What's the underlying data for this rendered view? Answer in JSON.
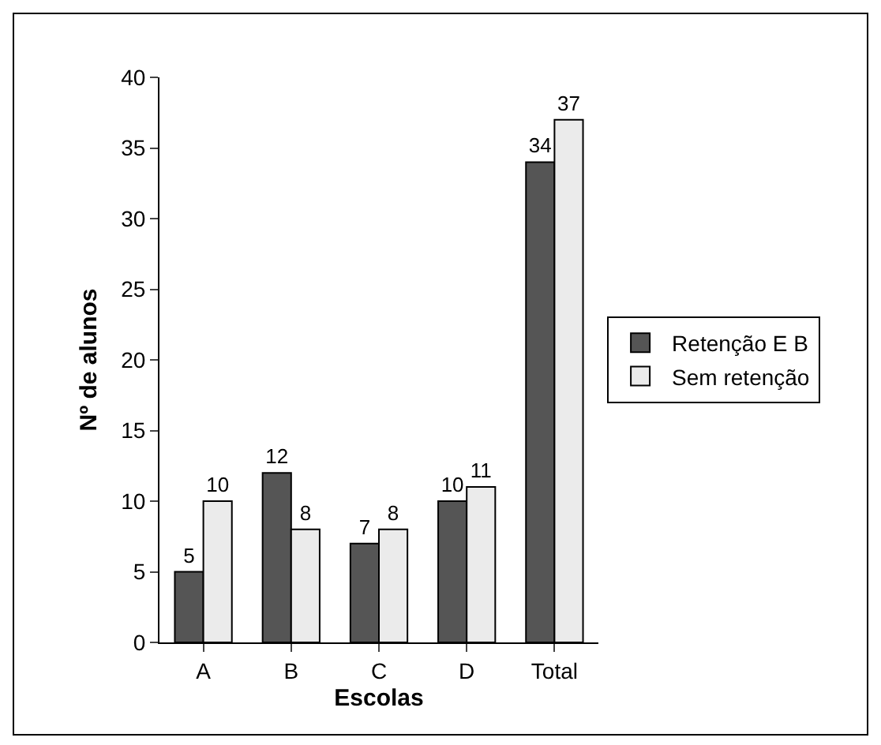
{
  "chart_data": {
    "type": "bar",
    "xlabel": "Escolas",
    "ylabel": "Nº de alunos",
    "categories": [
      "A",
      "B",
      "C",
      "D",
      "Total"
    ],
    "series": [
      {
        "name": "Retenção E B",
        "color": "#555555",
        "values": [
          5,
          12,
          7,
          10,
          34
        ]
      },
      {
        "name": "Sem retenção",
        "color": "#ebebeb",
        "values": [
          10,
          8,
          8,
          11,
          37
        ]
      }
    ],
    "ylim": [
      0,
      40
    ],
    "yticks": [
      0,
      5,
      10,
      15,
      20,
      25,
      30,
      35,
      40
    ],
    "data_labels": true,
    "legend": "right",
    "grid": false
  }
}
